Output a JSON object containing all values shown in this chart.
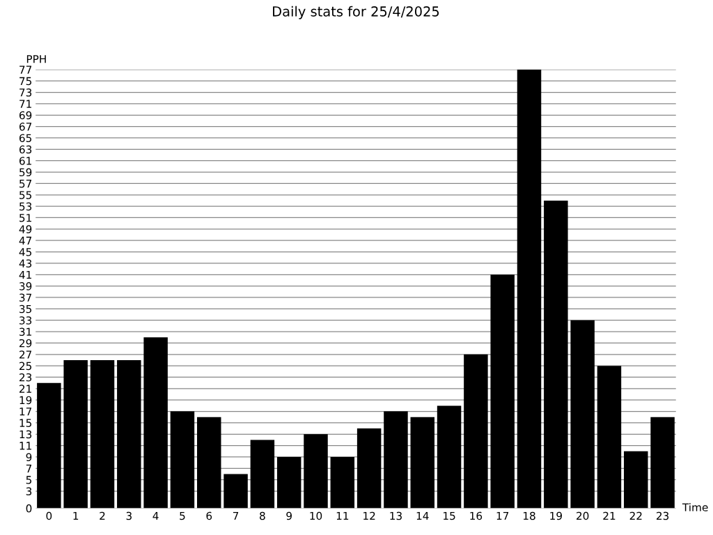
{
  "chart_data": {
    "type": "bar",
    "title": "Daily stats for 25/4/2025",
    "xlabel": "Time",
    "ylabel": "PPH",
    "categories": [
      "0",
      "1",
      "2",
      "3",
      "4",
      "5",
      "6",
      "7",
      "8",
      "9",
      "10",
      "11",
      "12",
      "13",
      "14",
      "15",
      "16",
      "17",
      "18",
      "19",
      "20",
      "21",
      "22",
      "23"
    ],
    "values": [
      22,
      26,
      26,
      26,
      30,
      17,
      16,
      6,
      12,
      9,
      13,
      9,
      14,
      17,
      16,
      18,
      27,
      41,
      77,
      54,
      33,
      25,
      10,
      16
    ],
    "color": "#000000",
    "ylim": [
      0,
      77
    ],
    "yticks": [
      0,
      3,
      5,
      7,
      9,
      11,
      13,
      15,
      17,
      19,
      21,
      23,
      25,
      27,
      29,
      31,
      33,
      35,
      37,
      39,
      41,
      43,
      45,
      47,
      49,
      51,
      53,
      55,
      57,
      59,
      61,
      63,
      65,
      67,
      69,
      71,
      73,
      75,
      77
    ],
    "grid": "y",
    "legend": false
  }
}
